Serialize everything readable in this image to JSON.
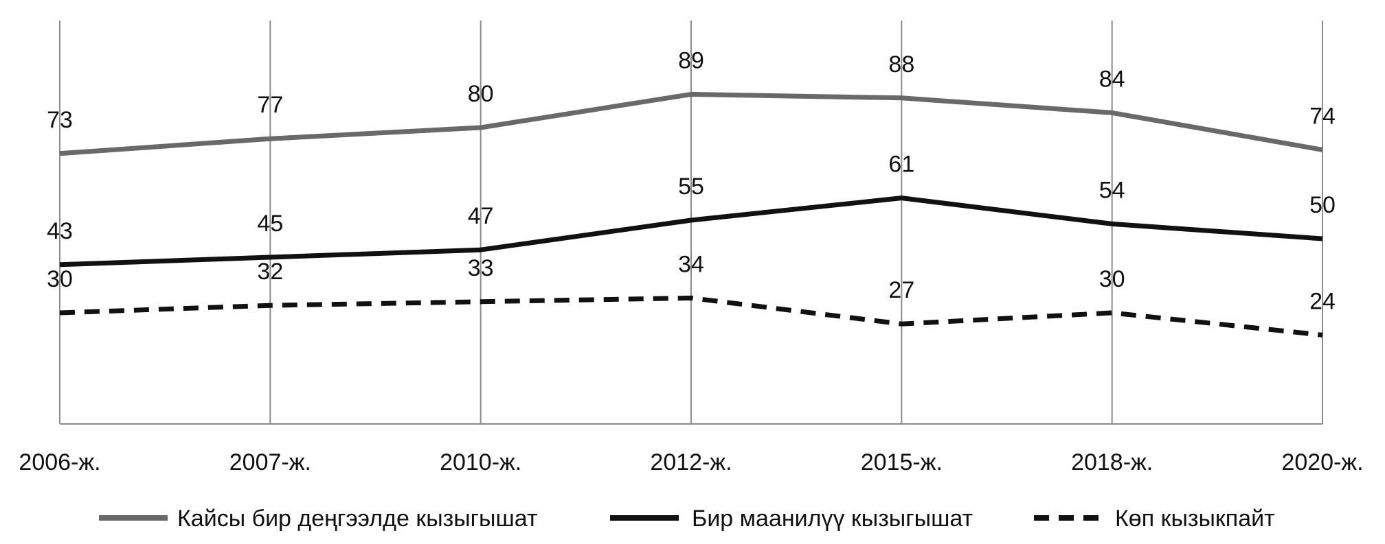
{
  "chart_data": {
    "type": "line",
    "categories": [
      "2006-ж.",
      "2007-ж.",
      "2010-ж.",
      "2012-ж.",
      "2015-ж.",
      "2018-ж.",
      "2020-ж."
    ],
    "series": [
      {
        "name": "Кайсы бир деңгээлде кызыгышат",
        "values": [
          73,
          77,
          80,
          89,
          88,
          84,
          74
        ],
        "color": "#696969",
        "style": "solid"
      },
      {
        "name": "Бир маанилүү кызыгышат",
        "values": [
          43,
          45,
          47,
          55,
          61,
          54,
          50
        ],
        "color": "#111111",
        "style": "solid"
      },
      {
        "name": "Көп кызыкпайт",
        "values": [
          30,
          32,
          33,
          34,
          27,
          30,
          24
        ],
        "color": "#111111",
        "style": "dashed"
      }
    ],
    "ylim": [
      0,
      100
    ],
    "grid": "vertical",
    "legend_position": "bottom"
  }
}
